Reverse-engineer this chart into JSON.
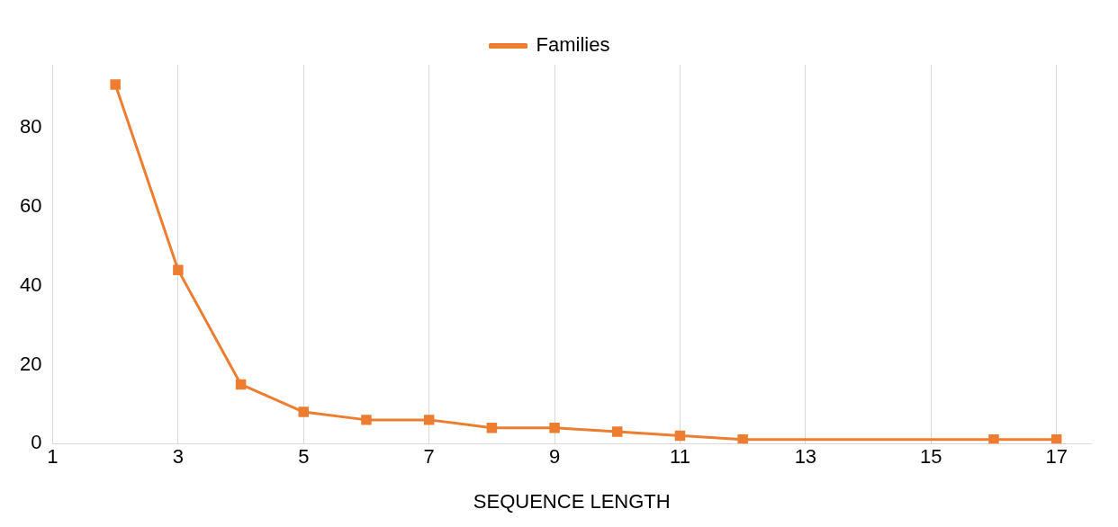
{
  "chart_data": {
    "type": "line",
    "xlabel": "SEQUENCE LENGTH",
    "x": [
      2,
      3,
      4,
      5,
      6,
      7,
      8,
      9,
      10,
      11,
      12,
      16,
      17
    ],
    "series": [
      {
        "name": "Families",
        "color": "#ed7d31",
        "values": [
          91,
          44,
          15,
          8,
          6,
          6,
          4,
          4,
          3,
          2,
          1,
          1,
          1
        ]
      }
    ],
    "xlim": [
      1,
      17.55
    ],
    "xticks": [
      1,
      3,
      5,
      7,
      9,
      11,
      13,
      15,
      17
    ],
    "ylim": [
      0,
      96
    ],
    "yticks": [
      0,
      20,
      40,
      60,
      80
    ],
    "grid": "x",
    "legend": "top",
    "marker": "square",
    "line_style": "solid"
  }
}
